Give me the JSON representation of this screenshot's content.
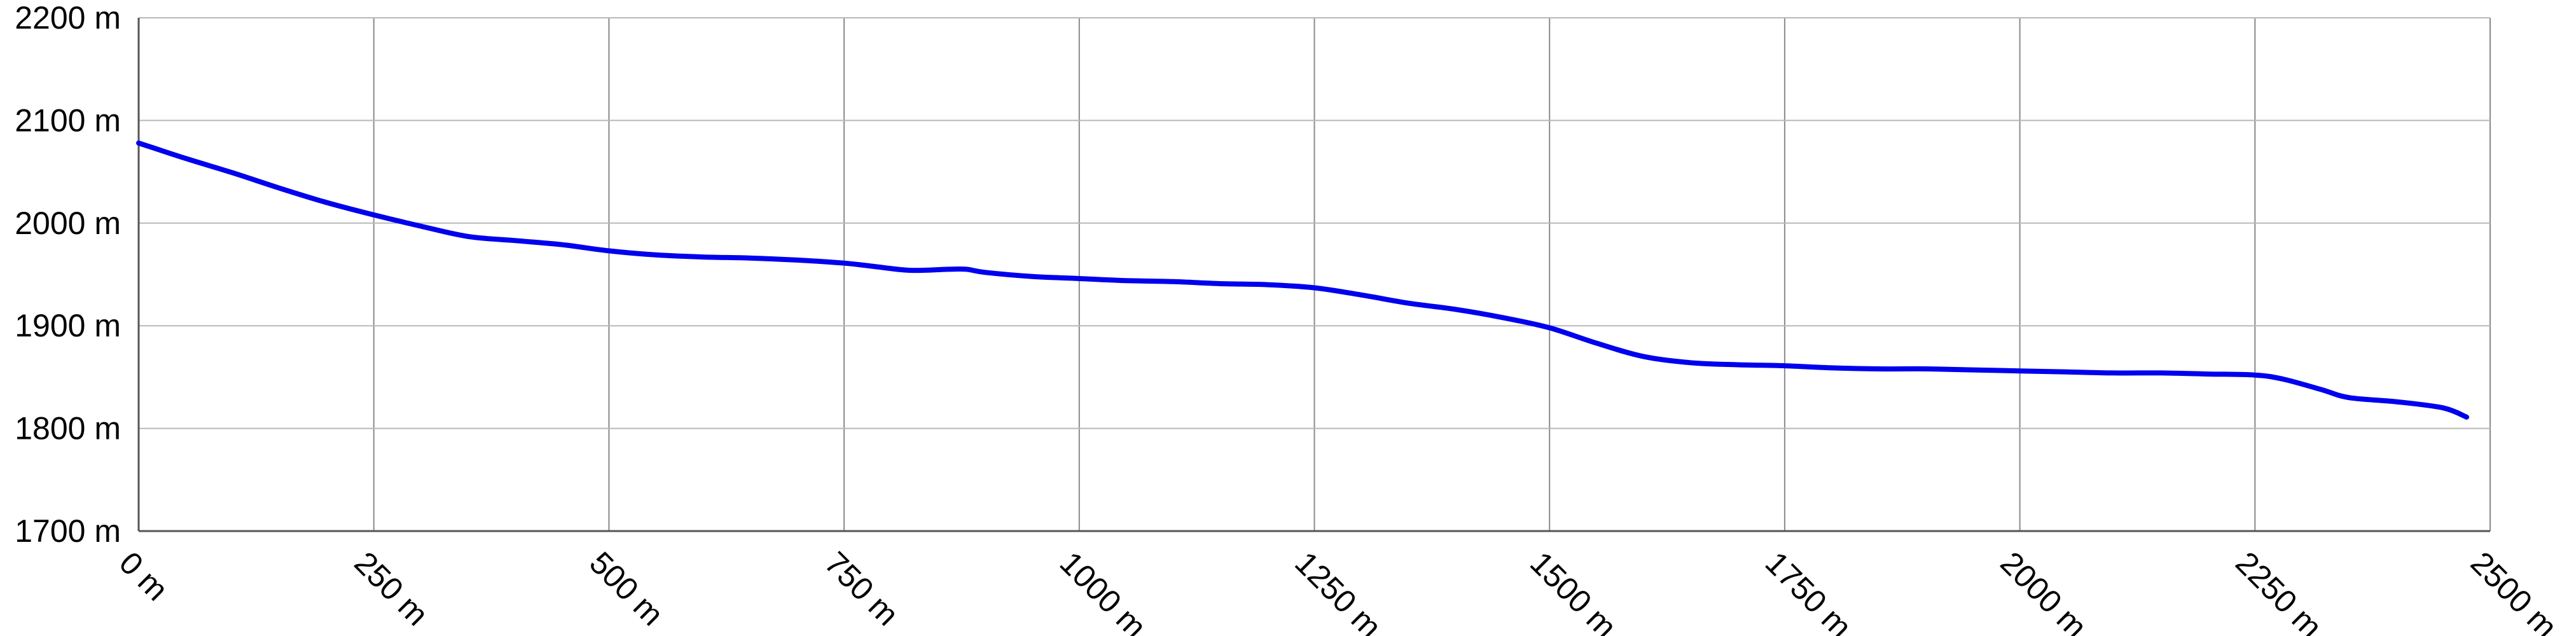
{
  "chart_data": {
    "type": "line",
    "title": "",
    "xlabel": "",
    "ylabel": "",
    "xlim": [
      0,
      2500
    ],
    "ylim": [
      1700,
      2200
    ],
    "grid": true,
    "legend": "none",
    "x_ticks": [
      0,
      250,
      500,
      750,
      1000,
      1250,
      1500,
      1750,
      2000,
      2250,
      2500
    ],
    "x_tick_labels": [
      "0 m",
      "250 m",
      "500 m",
      "750 m",
      "1000 m",
      "1250 m",
      "1500 m",
      "1750 m",
      "2000 m",
      "2250 m",
      "2500 m"
    ],
    "y_ticks": [
      1700,
      1800,
      1900,
      2000,
      2100,
      2200
    ],
    "y_tick_labels": [
      "1700 m",
      "1800 m",
      "1900 m",
      "2000 m",
      "2100 m",
      "2200 m"
    ],
    "series": [
      {
        "color": "#0000ee",
        "x": [
          0,
          50,
          100,
          150,
          200,
          250,
          300,
          350,
          400,
          450,
          500,
          550,
          600,
          650,
          700,
          750,
          780,
          820,
          860,
          880,
          900,
          950,
          1000,
          1050,
          1100,
          1150,
          1200,
          1250,
          1300,
          1350,
          1400,
          1450,
          1500,
          1550,
          1600,
          1650,
          1700,
          1750,
          1800,
          1850,
          1900,
          1950,
          2000,
          2050,
          2100,
          2150,
          2200,
          2250,
          2280,
          2320,
          2350,
          2400,
          2450,
          2475
        ],
        "y": [
          2078,
          2063,
          2049,
          2034,
          2020,
          2008,
          1997,
          1987,
          1983,
          1979,
          1973,
          1969,
          1967,
          1966,
          1964,
          1961,
          1958,
          1954,
          1955,
          1955,
          1952,
          1948,
          1946,
          1944,
          1943,
          1941,
          1940,
          1937,
          1930,
          1922,
          1916,
          1908,
          1898,
          1883,
          1870,
          1864,
          1862,
          1861,
          1859,
          1858,
          1858,
          1857,
          1856,
          1855,
          1854,
          1854,
          1853,
          1852,
          1848,
          1838,
          1830,
          1826,
          1820,
          1811
        ]
      }
    ]
  }
}
